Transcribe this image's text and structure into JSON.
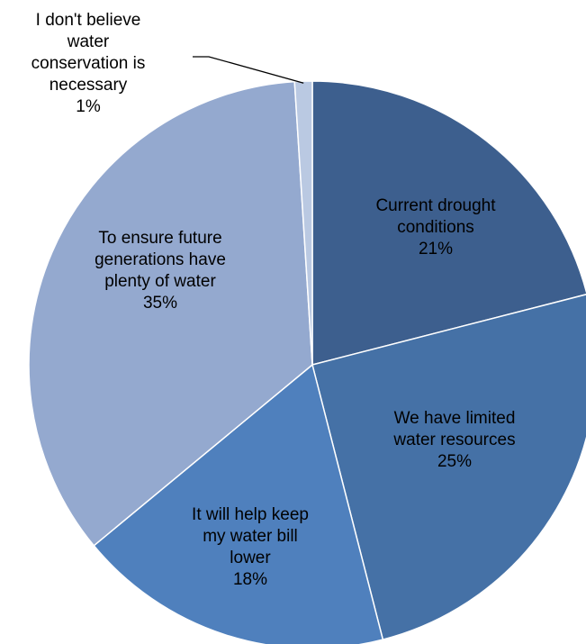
{
  "chart_data": {
    "type": "pie",
    "title": "",
    "start_angle_deg": 0,
    "direction": "clockwise",
    "slices": [
      {
        "name": "Current drought conditions",
        "value": 21,
        "percent_label": "21%",
        "label_lines": [
          "Current drought",
          "conditions",
          "21%"
        ],
        "color": "#3d5f8e"
      },
      {
        "name": "We have limited water resources",
        "value": 25,
        "percent_label": "25%",
        "label_lines": [
          "We have limited",
          "water resources",
          "25%"
        ],
        "color": "#4571a6"
      },
      {
        "name": "It will help keep my water bill lower",
        "value": 18,
        "percent_label": "18%",
        "label_lines": [
          "It will help keep",
          "my water bill",
          "lower",
          "18%"
        ],
        "color": "#4f80bd"
      },
      {
        "name": "To ensure future generations have plenty of water",
        "value": 35,
        "percent_label": "35%",
        "label_lines": [
          "To ensure future",
          "generations have",
          "plenty of water",
          "35%"
        ],
        "color": "#94a9cf"
      },
      {
        "name": "I don't believe water conservation is necessary",
        "value": 1,
        "percent_label": "1%",
        "label_lines": [
          "I don't believe",
          "water",
          "conservation is",
          "necessary",
          "1%"
        ],
        "color": "#bac9e2",
        "label_outside": true
      }
    ]
  }
}
